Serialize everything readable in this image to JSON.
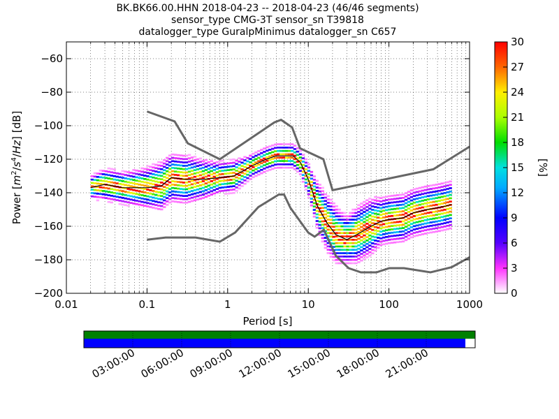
{
  "chart_data": {
    "type": "heatmap",
    "title_lines": [
      "BK.BK66.00.HHN   2018-04-23 -- 2018-04-23  (46/46 segments)",
      "sensor_type CMG-3T sensor_sn T39818",
      "datalogger_type GuralpMinimus datalogger_sn C657"
    ],
    "xlabel": "Period [s]",
    "ylabel_parts": [
      "Power [",
      "m",
      "2",
      "/",
      "s",
      "4",
      "/",
      "Hz",
      "] [dB]"
    ],
    "xscale": "log",
    "xlim": [
      0.01,
      1000
    ],
    "ylim": [
      -200,
      -50
    ],
    "xticks": [
      0.01,
      0.1,
      1,
      10,
      100,
      1000
    ],
    "xtick_labels": [
      "0.01",
      "0.1",
      "1",
      "10",
      "100",
      "1000"
    ],
    "yticks": [
      -200,
      -180,
      -160,
      -140,
      -120,
      -100,
      -80,
      -60
    ],
    "ytick_labels": [
      "−200",
      "−180",
      "−160",
      "−140",
      "−120",
      "−100",
      "−80",
      "−60"
    ],
    "grid": true,
    "colorbar": {
      "label": "[%]",
      "range": [
        0,
        30
      ],
      "ticks": [
        0,
        3,
        6,
        9,
        12,
        15,
        18,
        21,
        24,
        27,
        30
      ],
      "tick_labels": [
        "0",
        "3",
        "6",
        "9",
        "12",
        "15",
        "18",
        "21",
        "24",
        "27",
        "30"
      ]
    },
    "noise_model_high": {
      "name": "NHNM",
      "x": [
        0.1,
        0.22,
        0.32,
        0.8,
        3.8,
        4.6,
        6.3,
        7.9,
        15.4,
        20,
        354.8,
        1000
      ],
      "y": [
        -91.5,
        -97.4,
        -110.5,
        -120,
        -98,
        -96.5,
        -101,
        -113.5,
        -120,
        -138.5,
        -126,
        -112.5
      ]
    },
    "noise_model_low": {
      "name": "NLNM",
      "x": [
        0.1,
        0.17,
        0.4,
        0.8,
        1.24,
        2.4,
        4.3,
        5,
        6,
        10,
        12,
        15.6,
        21.9,
        31.6,
        45,
        70,
        101,
        154,
        328,
        600,
        1000
      ],
      "y": [
        -168,
        -166.7,
        -166.7,
        -169.2,
        -163.7,
        -148.6,
        -141.1,
        -141.1,
        -149,
        -163.8,
        -166.2,
        -162.1,
        -177.5,
        -185,
        -187.5,
        -187.5,
        -185,
        -185,
        -187.5,
        -184.4,
        -178.5
      ]
    },
    "mode_line": {
      "x": [
        0.02,
        0.03,
        0.05,
        0.1,
        0.15,
        0.2,
        0.3,
        0.5,
        0.8,
        1.2,
        2,
        3,
        4,
        5,
        6.5,
        8,
        10,
        13,
        17,
        22,
        30,
        40,
        60,
        80,
        100,
        150,
        200,
        300,
        400,
        500,
        600
      ],
      "y": [
        -137,
        -135,
        -137,
        -137,
        -136,
        -131,
        -132,
        -132,
        -131,
        -130,
        -124,
        -120,
        -118,
        -118,
        -118,
        -122,
        -132,
        -148,
        -158,
        -165,
        -168,
        -165,
        -160,
        -157,
        -156,
        -155,
        -152,
        -150,
        -149,
        -148,
        -147
      ]
    },
    "spread_y": [
      3,
      4,
      4,
      5,
      6,
      6,
      6,
      5,
      4,
      4,
      3,
      3,
      3,
      3,
      3,
      3,
      4,
      6,
      7,
      7,
      6,
      7,
      7,
      6,
      6,
      6,
      6,
      6,
      6,
      6,
      6
    ],
    "availability": {
      "time_ticks": [
        "03:00:00",
        "06:00:00",
        "09:00:00",
        "12:00:00",
        "15:00:00",
        "18:00:00",
        "21:00:00"
      ],
      "segments_fraction": 0.975,
      "top_color": "#008000",
      "bottom_color": "#0000ff"
    },
    "colors": {
      "model_line": "#666666",
      "mode_line": "#000000",
      "grid": "#000000"
    }
  }
}
